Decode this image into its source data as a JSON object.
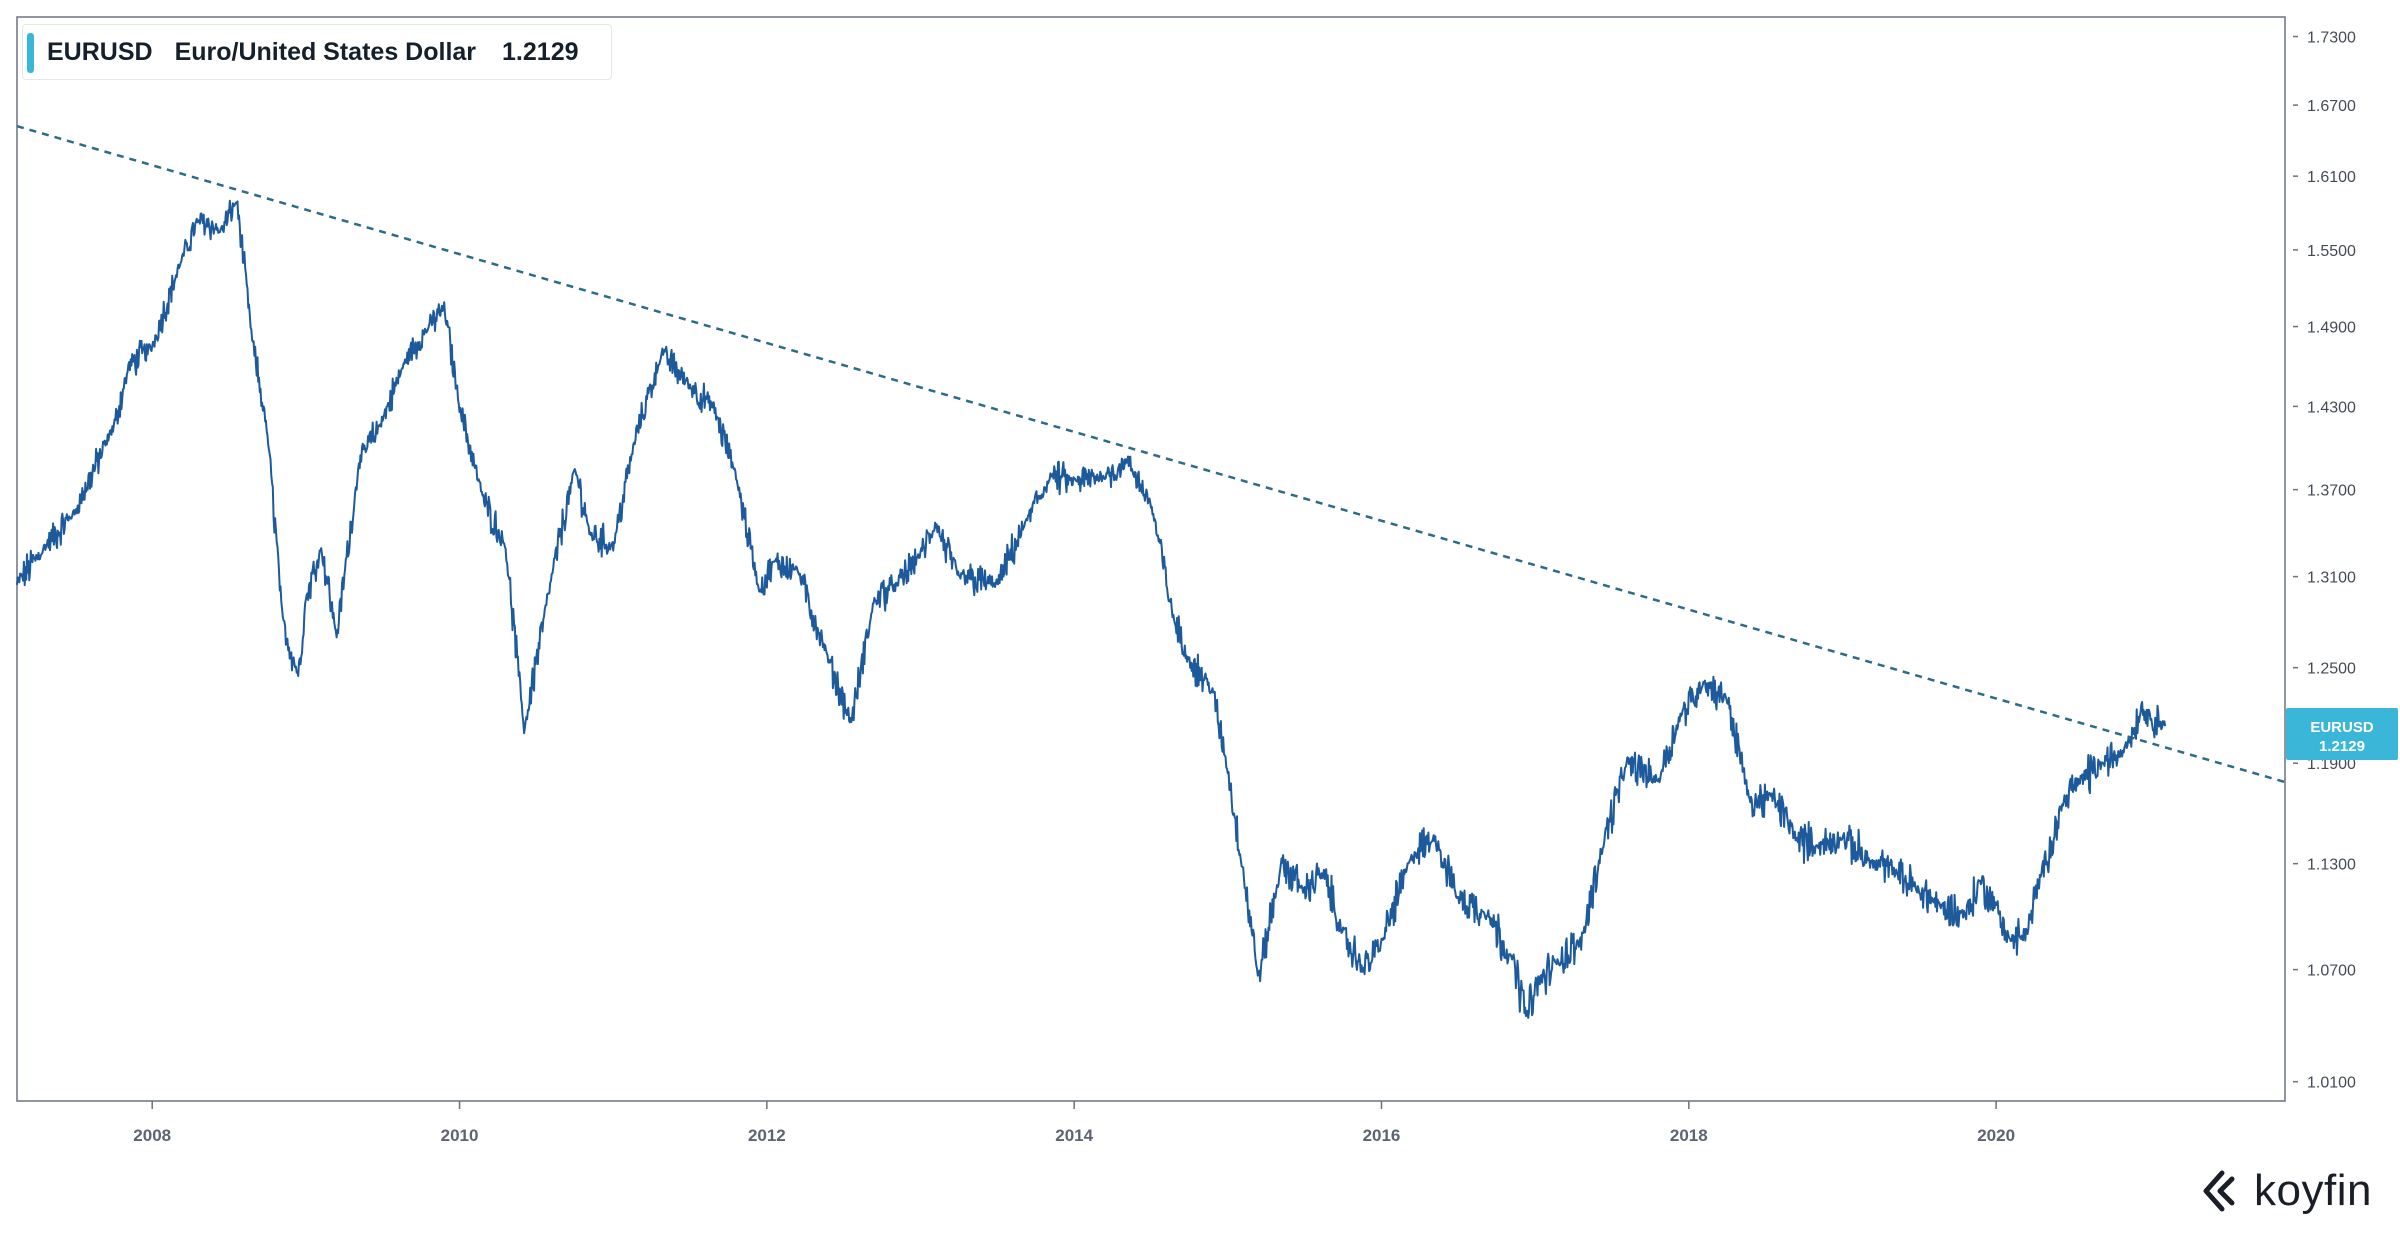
{
  "legend": {
    "symbol": "EURUSD",
    "name": "Euro/United States Dollar",
    "value": "1.2129",
    "accent_color": "#3ab7d8"
  },
  "price_tag": {
    "symbol": "EURUSD",
    "value": "1.2129",
    "color": "#3ab7d8"
  },
  "brand": {
    "name": "koyfin",
    "icon": "koyfin-logo-icon"
  },
  "colors": {
    "series": "#1d5a9c",
    "trendline": "#2e6b84",
    "axis": "#6b7280"
  },
  "chart_data": {
    "type": "line",
    "title": "",
    "xlabel": "",
    "ylabel": "",
    "x_range": [
      2007.12,
      2021.88
    ],
    "y_range": [
      1.0,
      1.7475
    ],
    "y_scale": "log",
    "y_ticks": [
      {
        "value": 1.01,
        "label": "1.0100"
      },
      {
        "value": 1.07,
        "label": "1.0700"
      },
      {
        "value": 1.13,
        "label": "1.1300"
      },
      {
        "value": 1.19,
        "label": "1.1900"
      },
      {
        "value": 1.25,
        "label": "1.2500"
      },
      {
        "value": 1.31,
        "label": "1.3100"
      },
      {
        "value": 1.37,
        "label": "1.3700"
      },
      {
        "value": 1.43,
        "label": "1.4300"
      },
      {
        "value": 1.49,
        "label": "1.4900"
      },
      {
        "value": 1.55,
        "label": "1.5500"
      },
      {
        "value": 1.61,
        "label": "1.6100"
      },
      {
        "value": 1.67,
        "label": "1.6700"
      },
      {
        "value": 1.73,
        "label": "1.7300"
      }
    ],
    "x_ticks": [
      {
        "value": 2008,
        "label": "2008"
      },
      {
        "value": 2010,
        "label": "2010"
      },
      {
        "value": 2012,
        "label": "2012"
      },
      {
        "value": 2014,
        "label": "2014"
      },
      {
        "value": 2016,
        "label": "2016"
      },
      {
        "value": 2018,
        "label": "2018"
      },
      {
        "value": 2020,
        "label": "2020"
      }
    ],
    "grid": false,
    "legend_position": "top-left",
    "series": [
      {
        "name": "EURUSD",
        "x": [
          2007.12,
          2007.3,
          2007.5,
          2007.75,
          2007.85,
          2008.0,
          2008.2,
          2008.3,
          2008.45,
          2008.55,
          2008.65,
          2008.75,
          2008.85,
          2008.95,
          2009.0,
          2009.1,
          2009.2,
          2009.35,
          2009.5,
          2009.65,
          2009.8,
          2009.9,
          2010.0,
          2010.15,
          2010.3,
          2010.42,
          2010.6,
          2010.75,
          2010.85,
          2011.0,
          2011.15,
          2011.32,
          2011.5,
          2011.65,
          2011.8,
          2011.95,
          2012.05,
          2012.2,
          2012.4,
          2012.55,
          2012.7,
          2012.85,
          2013.0,
          2013.1,
          2013.25,
          2013.5,
          2013.7,
          2013.85,
          2014.0,
          2014.2,
          2014.35,
          2014.5,
          2014.65,
          2014.75,
          2014.9,
          2015.0,
          2015.1,
          2015.2,
          2015.35,
          2015.5,
          2015.62,
          2015.75,
          2015.88,
          2016.0,
          2016.2,
          2016.35,
          2016.5,
          2016.7,
          2016.85,
          2016.95,
          2017.0,
          2017.15,
          2017.3,
          2017.45,
          2017.6,
          2017.8,
          2017.95,
          2018.1,
          2018.25,
          2018.4,
          2018.55,
          2018.7,
          2018.85,
          2019.0,
          2019.2,
          2019.35,
          2019.5,
          2019.65,
          2019.8,
          2019.9,
          2020.0,
          2020.1,
          2020.2,
          2020.3,
          2020.45,
          2020.55,
          2020.7,
          2020.85,
          2020.95,
          2021.0,
          2021.1
        ],
        "values": [
          1.305,
          1.33,
          1.355,
          1.415,
          1.46,
          1.475,
          1.545,
          1.575,
          1.565,
          1.59,
          1.48,
          1.41,
          1.28,
          1.245,
          1.295,
          1.33,
          1.27,
          1.39,
          1.42,
          1.465,
          1.49,
          1.505,
          1.43,
          1.365,
          1.33,
          1.21,
          1.31,
          1.385,
          1.34,
          1.33,
          1.41,
          1.47,
          1.445,
          1.43,
          1.38,
          1.3,
          1.32,
          1.315,
          1.255,
          1.215,
          1.295,
          1.305,
          1.325,
          1.345,
          1.31,
          1.305,
          1.35,
          1.38,
          1.375,
          1.38,
          1.39,
          1.36,
          1.28,
          1.255,
          1.235,
          1.185,
          1.125,
          1.065,
          1.13,
          1.115,
          1.125,
          1.09,
          1.07,
          1.085,
          1.135,
          1.145,
          1.11,
          1.1,
          1.075,
          1.045,
          1.06,
          1.075,
          1.085,
          1.145,
          1.19,
          1.18,
          1.22,
          1.24,
          1.23,
          1.165,
          1.17,
          1.145,
          1.14,
          1.145,
          1.13,
          1.125,
          1.115,
          1.105,
          1.1,
          1.12,
          1.105,
          1.085,
          1.09,
          1.125,
          1.17,
          1.18,
          1.19,
          1.2,
          1.225,
          1.22,
          1.2129
        ]
      }
    ],
    "trendline": {
      "style": "dashed",
      "x": [
        2007.12,
        2021.88
      ],
      "values": [
        1.652,
        1.1785
      ]
    }
  }
}
